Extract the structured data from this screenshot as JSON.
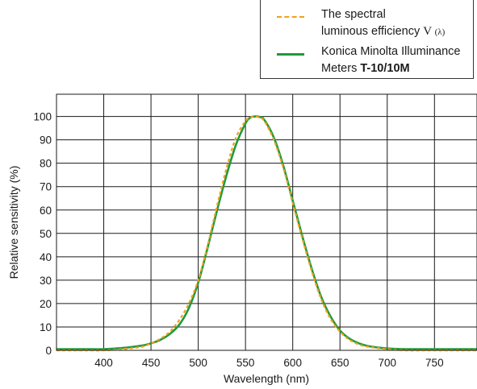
{
  "chart_data": {
    "type": "line",
    "title": "",
    "xlabel": "Wavelength (nm)",
    "ylabel": "Relative sensitivity (%)",
    "xlim": [
      350,
      795
    ],
    "ylim": [
      0,
      100
    ],
    "xticks": [
      400,
      450,
      500,
      550,
      600,
      650,
      700,
      750
    ],
    "yticks": [
      0,
      10,
      20,
      30,
      40,
      50,
      60,
      70,
      80,
      90,
      100
    ],
    "grid": true,
    "legend_position": "top-right",
    "series": [
      {
        "name": "The spectral luminous efficiency V (λ)",
        "color": "#f0a020",
        "style": "dashed",
        "x": [
          350,
          380,
          400,
          420,
          440,
          450,
          460,
          470,
          480,
          490,
          500,
          510,
          520,
          530,
          540,
          550,
          555,
          560,
          565,
          570,
          580,
          590,
          600,
          610,
          620,
          630,
          640,
          650,
          660,
          670,
          680,
          700,
          720,
          750,
          795
        ],
        "y": [
          0,
          0,
          0,
          0.5,
          1.5,
          3,
          5,
          8,
          13,
          20,
          30,
          45,
          62,
          78,
          91,
          98,
          99.5,
          100,
          99.5,
          98,
          90,
          78,
          63,
          48,
          34,
          22,
          13.5,
          8,
          4.5,
          2.5,
          1.5,
          0.5,
          0,
          0,
          0
        ]
      },
      {
        "name": "Konica Minolta Illuminance Meters T-10/10M",
        "color": "#1e9a3a",
        "style": "solid",
        "x": [
          350,
          380,
          400,
          420,
          440,
          450,
          460,
          470,
          480,
          490,
          500,
          510,
          520,
          530,
          540,
          550,
          555,
          560,
          565,
          570,
          580,
          590,
          600,
          610,
          620,
          630,
          640,
          650,
          660,
          670,
          680,
          700,
          720,
          750,
          795
        ],
        "y": [
          0.5,
          0.5,
          0.5,
          1,
          2,
          3,
          4.5,
          7,
          11,
          18,
          29,
          44,
          60,
          75,
          88,
          97,
          99.5,
          100,
          99.8,
          98.5,
          91,
          79,
          64,
          49,
          35,
          23,
          14.5,
          8.5,
          5,
          3,
          1.8,
          0.8,
          0.5,
          0.5,
          0.5
        ]
      }
    ]
  },
  "legend": {
    "item1_line1": "The spectral",
    "item1_line2": "luminous efficiency",
    "item1_symbol": "V",
    "item1_symbol_sub": "(λ)",
    "item2_line1": "Konica Minolta Illuminance",
    "item2_line2_prefix": "Meters ",
    "item2_line2_bold": "T-10/10M"
  }
}
